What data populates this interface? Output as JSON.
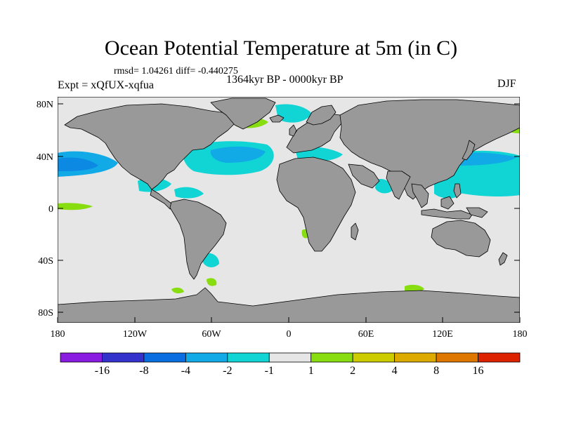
{
  "title": "Ocean Potential Temperature at 5m (in C)",
  "stats": "rmsd= 1.04261 diff= -0.440275",
  "experiment": "Expt = xQfUX-xqfua",
  "period": "1364kyr BP - 0000kyr BP",
  "season": "DJF",
  "map": {
    "lat_ticks": [
      {
        "lat": 80,
        "label": "80N"
      },
      {
        "lat": 40,
        "label": "40N"
      },
      {
        "lat": 0,
        "label": "0"
      },
      {
        "lat": -40,
        "label": "40S"
      },
      {
        "lat": -80,
        "label": "80S"
      }
    ],
    "lon_ticks": [
      {
        "lon": -180,
        "label": "180"
      },
      {
        "lon": -120,
        "label": "120W"
      },
      {
        "lon": -60,
        "label": "60W"
      },
      {
        "lon": 0,
        "label": "0"
      },
      {
        "lon": 60,
        "label": "60E"
      },
      {
        "lon": 120,
        "label": "120E"
      },
      {
        "lon": 180,
        "label": "180"
      }
    ],
    "colors": {
      "ocean": "#e6e6e6",
      "land": "#999999"
    }
  },
  "colorbar": {
    "colors": [
      "#8a1be0",
      "#3333cc",
      "#0a6ee0",
      "#11aae6",
      "#11d4d4",
      "#e6e6e6",
      "#88dd11",
      "#cccc00",
      "#ddaa00",
      "#dd7700",
      "#dd2200"
    ],
    "labels": [
      "-16",
      "-8",
      "-4",
      "-2",
      "-1",
      "1",
      "2",
      "4",
      "8",
      "16"
    ]
  }
}
